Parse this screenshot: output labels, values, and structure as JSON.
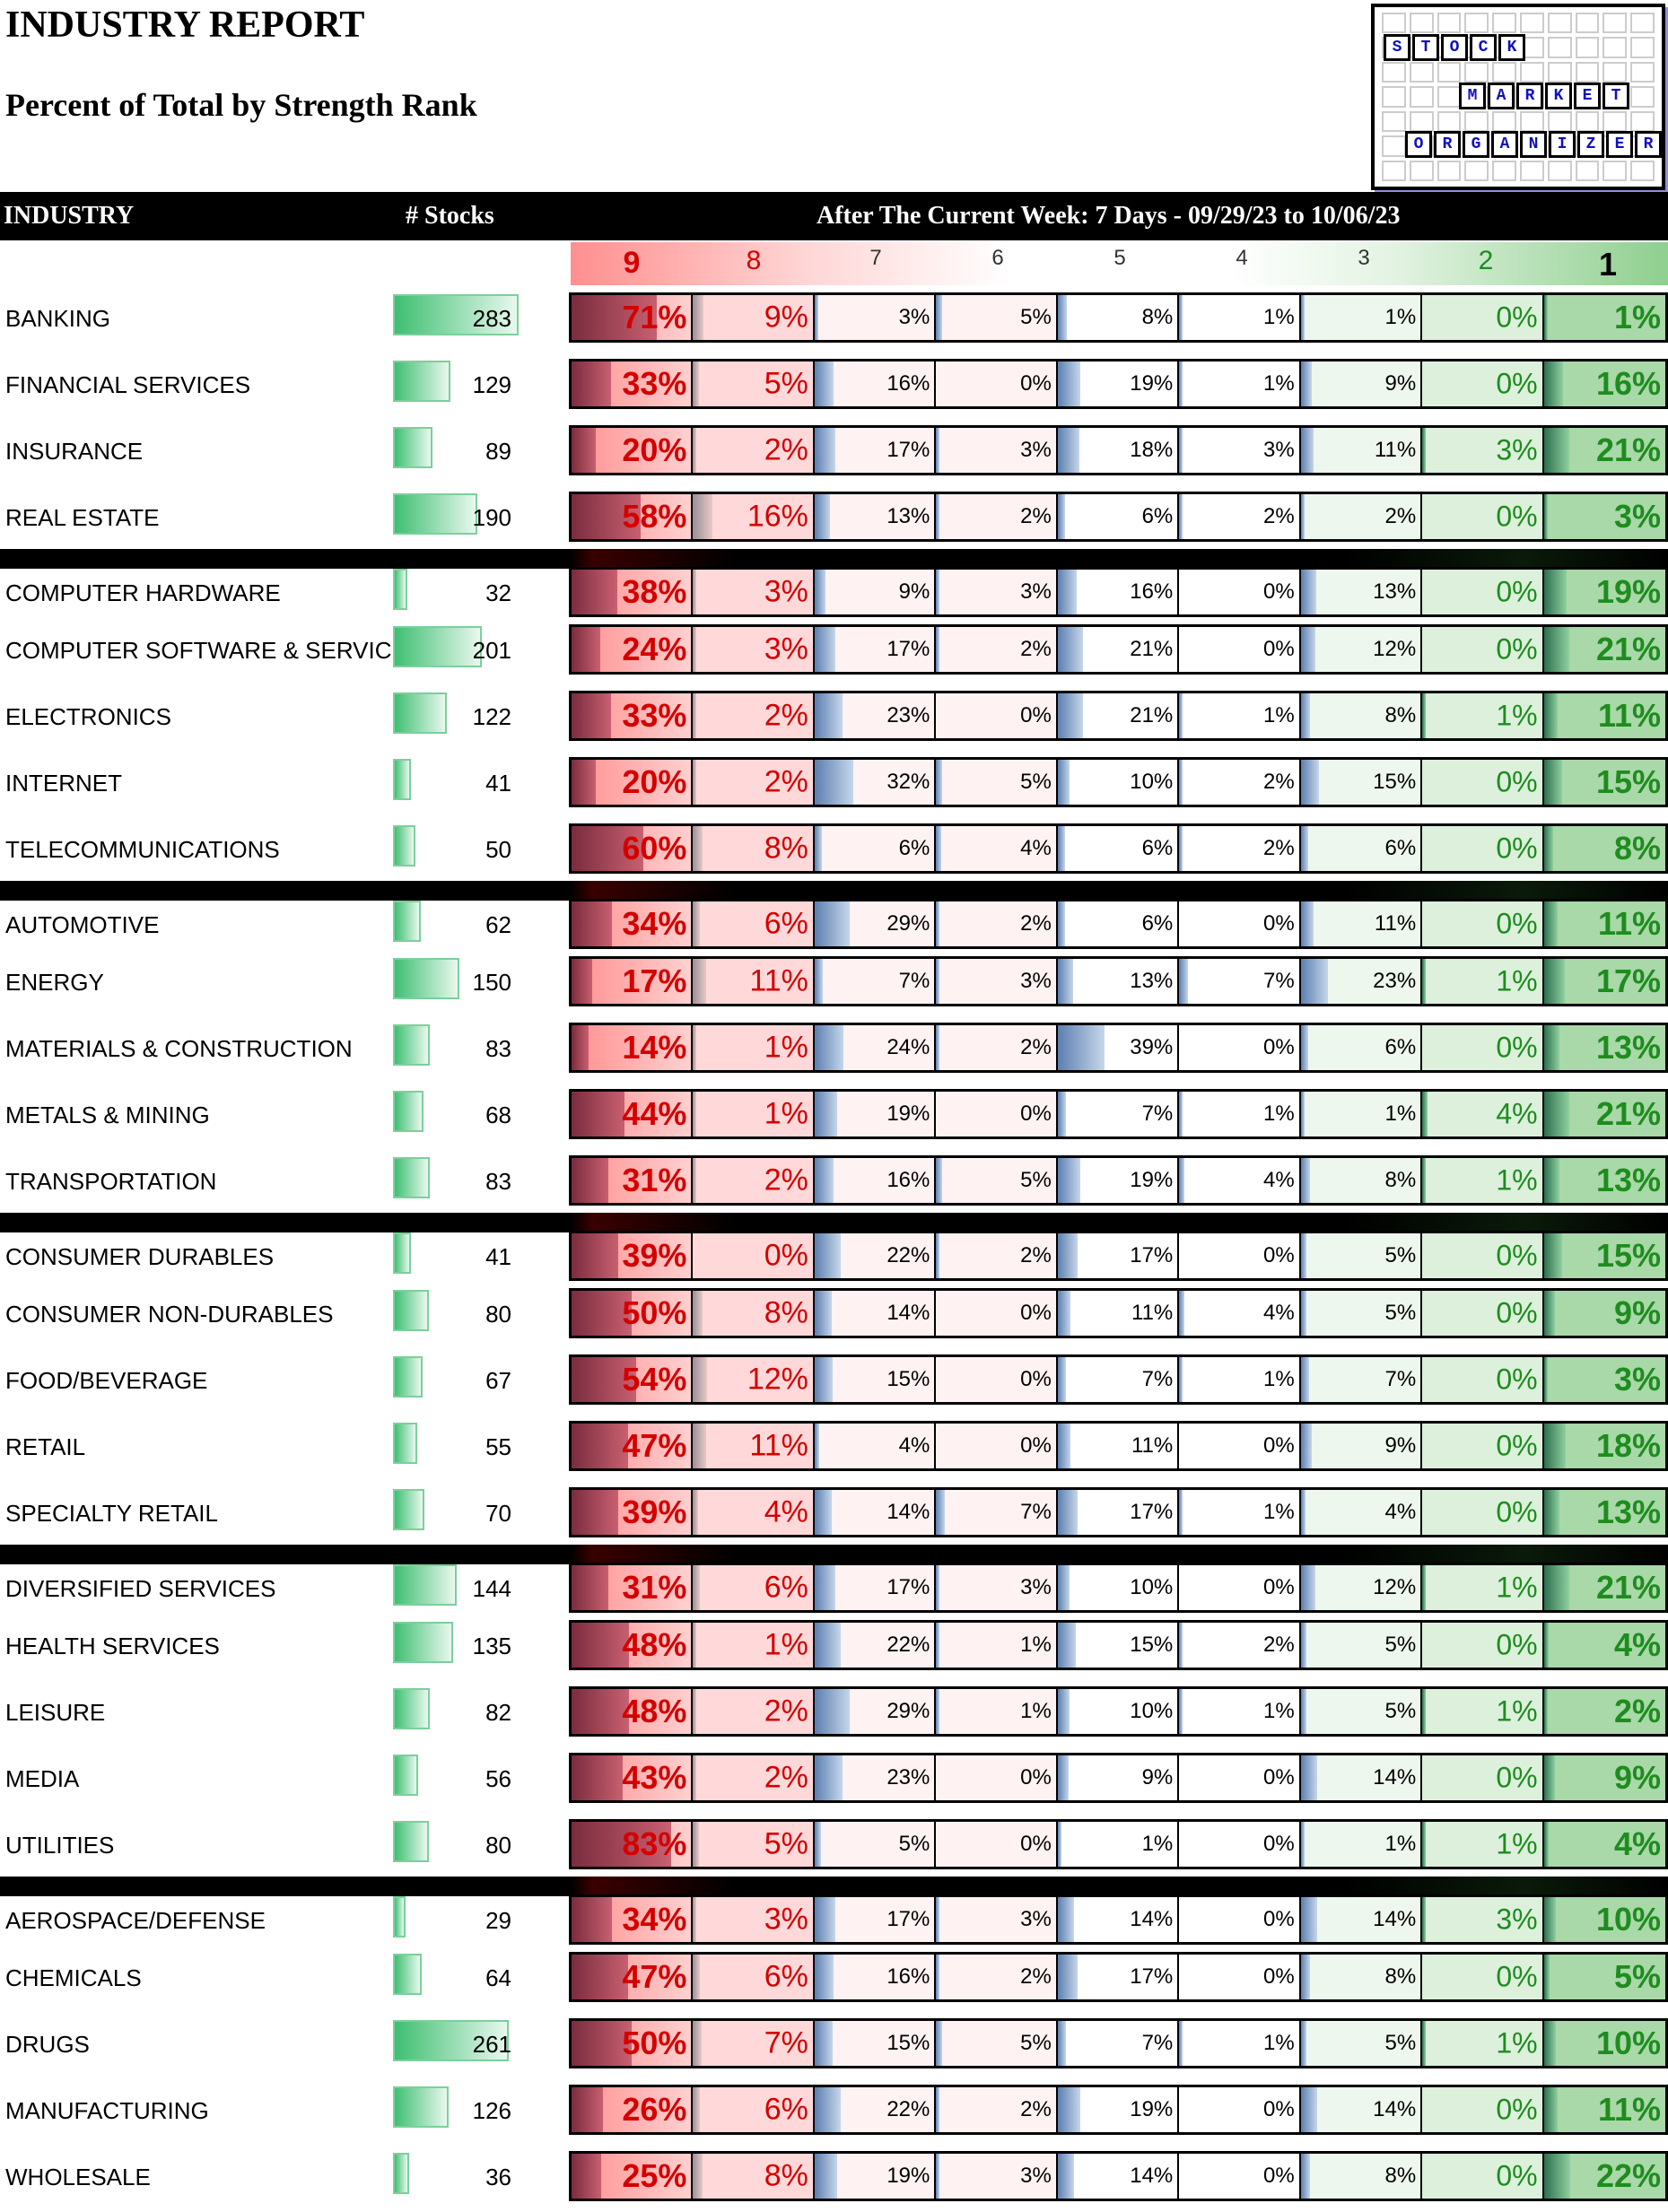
{
  "title": "INDUSTRY REPORT",
  "subtitle": "Percent of Total by Strength Rank",
  "logo": {
    "line1": [
      "S",
      "T",
      "O",
      "C",
      "K"
    ],
    "line2": [
      "M",
      "A",
      "R",
      "K",
      "E",
      "T"
    ],
    "line3": [
      "O",
      "R",
      "G",
      "A",
      "N",
      "I",
      "Z",
      "E",
      "R"
    ]
  },
  "header": {
    "industry": "INDUSTRY",
    "stocks": "# Stocks",
    "period": "After The Current Week: 7 Days - 09/29/23 to 10/06/23"
  },
  "ranks": [
    "9",
    "8",
    "7",
    "6",
    "5",
    "4",
    "3",
    "2",
    "1"
  ],
  "colors": {
    "red": "#d40000",
    "green": "#1e8c1e",
    "header_bg": "#000000",
    "count_bar": "#3fbf72"
  },
  "groups": [
    {
      "rows": [
        {
          "industry": "BANKING",
          "stocks": 283,
          "pct": [
            "71%",
            "9%",
            "3%",
            "5%",
            "8%",
            "1%",
            "1%",
            "0%",
            "1%"
          ]
        },
        {
          "industry": "FINANCIAL SERVICES",
          "stocks": 129,
          "pct": [
            "33%",
            "5%",
            "16%",
            "0%",
            "19%",
            "1%",
            "9%",
            "0%",
            "16%"
          ]
        },
        {
          "industry": "INSURANCE",
          "stocks": 89,
          "pct": [
            "20%",
            "2%",
            "17%",
            "3%",
            "18%",
            "3%",
            "11%",
            "3%",
            "21%"
          ]
        },
        {
          "industry": "REAL ESTATE",
          "stocks": 190,
          "pct": [
            "58%",
            "16%",
            "13%",
            "2%",
            "6%",
            "2%",
            "2%",
            "0%",
            "3%"
          ]
        }
      ]
    },
    {
      "rows": [
        {
          "industry": "COMPUTER HARDWARE",
          "stocks": 32,
          "pct": [
            "38%",
            "3%",
            "9%",
            "3%",
            "16%",
            "0%",
            "13%",
            "0%",
            "19%"
          ]
        },
        {
          "industry": "COMPUTER SOFTWARE & SERVICES",
          "stocks": 201,
          "pct": [
            "24%",
            "3%",
            "17%",
            "2%",
            "21%",
            "0%",
            "12%",
            "0%",
            "21%"
          ]
        },
        {
          "industry": "ELECTRONICS",
          "stocks": 122,
          "pct": [
            "33%",
            "2%",
            "23%",
            "0%",
            "21%",
            "1%",
            "8%",
            "1%",
            "11%"
          ]
        },
        {
          "industry": "INTERNET",
          "stocks": 41,
          "pct": [
            "20%",
            "2%",
            "32%",
            "5%",
            "10%",
            "2%",
            "15%",
            "0%",
            "15%"
          ]
        },
        {
          "industry": "TELECOMMUNICATIONS",
          "stocks": 50,
          "pct": [
            "60%",
            "8%",
            "6%",
            "4%",
            "6%",
            "2%",
            "6%",
            "0%",
            "8%"
          ]
        }
      ]
    },
    {
      "rows": [
        {
          "industry": "AUTOMOTIVE",
          "stocks": 62,
          "pct": [
            "34%",
            "6%",
            "29%",
            "2%",
            "6%",
            "0%",
            "11%",
            "0%",
            "11%"
          ]
        },
        {
          "industry": "ENERGY",
          "stocks": 150,
          "pct": [
            "17%",
            "11%",
            "7%",
            "3%",
            "13%",
            "7%",
            "23%",
            "1%",
            "17%"
          ]
        },
        {
          "industry": "MATERIALS & CONSTRUCTION",
          "stocks": 83,
          "pct": [
            "14%",
            "1%",
            "24%",
            "2%",
            "39%",
            "0%",
            "6%",
            "0%",
            "13%"
          ]
        },
        {
          "industry": "METALS & MINING",
          "stocks": 68,
          "pct": [
            "44%",
            "1%",
            "19%",
            "0%",
            "7%",
            "1%",
            "1%",
            "4%",
            "21%"
          ]
        },
        {
          "industry": "TRANSPORTATION",
          "stocks": 83,
          "pct": [
            "31%",
            "2%",
            "16%",
            "5%",
            "19%",
            "4%",
            "8%",
            "1%",
            "13%"
          ]
        }
      ]
    },
    {
      "rows": [
        {
          "industry": "CONSUMER DURABLES",
          "stocks": 41,
          "pct": [
            "39%",
            "0%",
            "22%",
            "2%",
            "17%",
            "0%",
            "5%",
            "0%",
            "15%"
          ]
        },
        {
          "industry": "CONSUMER NON-DURABLES",
          "stocks": 80,
          "pct": [
            "50%",
            "8%",
            "14%",
            "0%",
            "11%",
            "4%",
            "5%",
            "0%",
            "9%"
          ]
        },
        {
          "industry": "FOOD/BEVERAGE",
          "stocks": 67,
          "pct": [
            "54%",
            "12%",
            "15%",
            "0%",
            "7%",
            "1%",
            "7%",
            "0%",
            "3%"
          ]
        },
        {
          "industry": "RETAIL",
          "stocks": 55,
          "pct": [
            "47%",
            "11%",
            "4%",
            "0%",
            "11%",
            "0%",
            "9%",
            "0%",
            "18%"
          ]
        },
        {
          "industry": "SPECIALTY RETAIL",
          "stocks": 70,
          "pct": [
            "39%",
            "4%",
            "14%",
            "7%",
            "17%",
            "1%",
            "4%",
            "0%",
            "13%"
          ]
        }
      ]
    },
    {
      "rows": [
        {
          "industry": "DIVERSIFIED SERVICES",
          "stocks": 144,
          "pct": [
            "31%",
            "6%",
            "17%",
            "3%",
            "10%",
            "0%",
            "12%",
            "1%",
            "21%"
          ]
        },
        {
          "industry": "HEALTH SERVICES",
          "stocks": 135,
          "pct": [
            "48%",
            "1%",
            "22%",
            "1%",
            "15%",
            "2%",
            "5%",
            "0%",
            "4%"
          ]
        },
        {
          "industry": "LEISURE",
          "stocks": 82,
          "pct": [
            "48%",
            "2%",
            "29%",
            "1%",
            "10%",
            "1%",
            "5%",
            "1%",
            "2%"
          ]
        },
        {
          "industry": "MEDIA",
          "stocks": 56,
          "pct": [
            "43%",
            "2%",
            "23%",
            "0%",
            "9%",
            "0%",
            "14%",
            "0%",
            "9%"
          ]
        },
        {
          "industry": "UTILITIES",
          "stocks": 80,
          "pct": [
            "83%",
            "5%",
            "5%",
            "0%",
            "1%",
            "0%",
            "1%",
            "1%",
            "4%"
          ]
        }
      ]
    },
    {
      "rows": [
        {
          "industry": "AEROSPACE/DEFENSE",
          "stocks": 29,
          "pct": [
            "34%",
            "3%",
            "17%",
            "3%",
            "14%",
            "0%",
            "14%",
            "3%",
            "10%"
          ]
        },
        {
          "industry": "CHEMICALS",
          "stocks": 64,
          "pct": [
            "47%",
            "6%",
            "16%",
            "2%",
            "17%",
            "0%",
            "8%",
            "0%",
            "5%"
          ]
        },
        {
          "industry": "DRUGS",
          "stocks": 261,
          "pct": [
            "50%",
            "7%",
            "15%",
            "5%",
            "7%",
            "1%",
            "5%",
            "1%",
            "10%"
          ]
        },
        {
          "industry": "MANUFACTURING",
          "stocks": 126,
          "pct": [
            "26%",
            "6%",
            "22%",
            "2%",
            "19%",
            "0%",
            "14%",
            "0%",
            "11%"
          ]
        },
        {
          "industry": "WHOLESALE",
          "stocks": 36,
          "pct": [
            "25%",
            "8%",
            "19%",
            "3%",
            "14%",
            "0%",
            "8%",
            "0%",
            "22%"
          ]
        }
      ]
    }
  ]
}
